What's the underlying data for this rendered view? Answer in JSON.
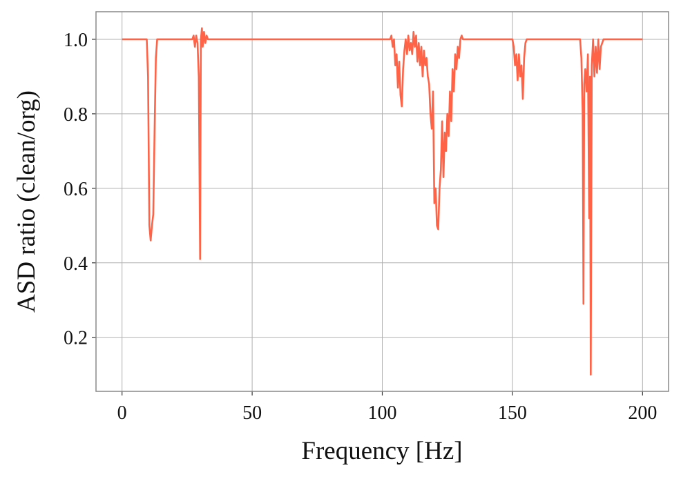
{
  "chart_data": {
    "type": "line",
    "x_label": "Frequency [Hz]",
    "y_label": "ASD ratio (clean/org)",
    "color": "#ff6347",
    "grid": true,
    "xlim": [
      -10,
      210
    ],
    "ylim": [
      0.055,
      1.074
    ],
    "xticks": [
      0,
      50,
      100,
      150,
      200
    ],
    "yticks": [
      0.2,
      0.4,
      0.6,
      0.8,
      {
        "value": 1,
        "label": "1.0"
      }
    ],
    "x": [
      0,
      9.5,
      10,
      10.5,
      11,
      11.5,
      12,
      12.5,
      13,
      13.5,
      27,
      27.5,
      28,
      28.5,
      29,
      29.5,
      30,
      30.3,
      30.7,
      31,
      31.5,
      32,
      32.5,
      33,
      103,
      103.5,
      104,
      104.5,
      105,
      105.5,
      106,
      106.5,
      107,
      107.5,
      108,
      108.5,
      109,
      109.5,
      110,
      110.5,
      111,
      111.5,
      112,
      112.5,
      113,
      113.5,
      114,
      114.5,
      115,
      115.5,
      116,
      116.5,
      117,
      117.5,
      118,
      118.5,
      119,
      119.5,
      120,
      120.5,
      121,
      121.5,
      122,
      122.5,
      123,
      123.5,
      124,
      124.5,
      125,
      125.5,
      126,
      126.5,
      127,
      127.5,
      128,
      128.5,
      129,
      129.5,
      130,
      130.5,
      131,
      150,
      150.5,
      151,
      151.5,
      152,
      152.5,
      153,
      153.5,
      154,
      154.5,
      155,
      155.5,
      176,
      176.5,
      177,
      177.3,
      177.6,
      178,
      178.5,
      179,
      179.5,
      179.8,
      180.1,
      180.5,
      181,
      181.5,
      182,
      182.5,
      183,
      183.5,
      184,
      184.5,
      185,
      200
    ],
    "values": [
      1.0,
      1.0,
      0.9,
      0.5,
      0.46,
      0.5,
      0.53,
      0.75,
      0.95,
      1.0,
      1.0,
      1.01,
      0.98,
      1.01,
      0.99,
      0.9,
      0.41,
      1.0,
      1.03,
      0.98,
      1.02,
      0.99,
      1.01,
      1.0,
      1.0,
      1.01,
      0.98,
      1.0,
      0.93,
      0.96,
      0.87,
      0.94,
      0.85,
      0.82,
      0.92,
      0.97,
      1.0,
      0.96,
      1.01,
      0.97,
      0.99,
      0.96,
      1.02,
      0.98,
      1.01,
      0.94,
      0.99,
      0.93,
      0.98,
      0.9,
      0.97,
      0.93,
      0.95,
      0.9,
      0.88,
      0.8,
      0.76,
      0.86,
      0.56,
      0.6,
      0.5,
      0.49,
      0.6,
      0.65,
      0.78,
      0.63,
      0.75,
      0.7,
      0.8,
      0.74,
      0.86,
      0.78,
      0.92,
      0.86,
      0.96,
      0.92,
      0.98,
      0.95,
      1.0,
      1.01,
      1.0,
      1.0,
      0.98,
      0.93,
      0.96,
      0.89,
      0.96,
      0.9,
      0.93,
      0.84,
      0.95,
      0.99,
      1.0,
      1.0,
      0.95,
      0.8,
      0.29,
      0.88,
      0.92,
      0.86,
      0.96,
      0.52,
      0.9,
      0.1,
      0.93,
      1.0,
      0.9,
      0.98,
      0.91,
      1.0,
      0.92,
      0.98,
      0.99,
      1.0,
      1.0
    ]
  }
}
